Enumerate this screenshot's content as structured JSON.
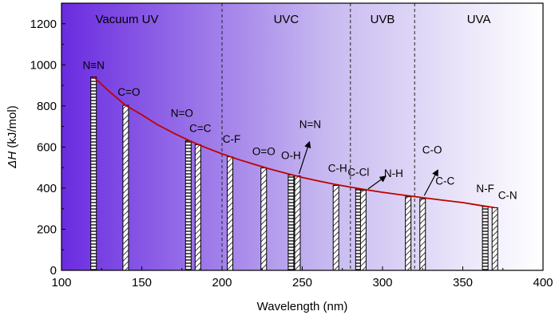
{
  "chart_data": {
    "type": "bar",
    "title": "",
    "xlabel": "Wavelength (nm)",
    "ylabel_symbol": "ΔH",
    "ylabel_unit": "(kJ/mol)",
    "xlim": [
      100,
      400
    ],
    "ylim": [
      0,
      1300
    ],
    "xticks": [
      100,
      150,
      200,
      250,
      300,
      350,
      400
    ],
    "yticks": [
      0,
      200,
      400,
      600,
      800,
      1000,
      1200
    ],
    "regions": [
      {
        "label": "Vacuum UV",
        "range": [
          100,
          200
        ]
      },
      {
        "label": "UVC",
        "range": [
          200,
          280
        ]
      },
      {
        "label": "UVB",
        "range": [
          280,
          320
        ]
      },
      {
        "label": "UVA",
        "range": [
          320,
          400
        ]
      }
    ],
    "region_boundaries": [
      200,
      280,
      320
    ],
    "bonds": [
      {
        "label": "N≡N",
        "wavelength": 120,
        "dH": 941,
        "pattern": "horizontal"
      },
      {
        "label": "C=O",
        "wavelength": 140,
        "dH": 803,
        "pattern": "diagonal"
      },
      {
        "label": "N=O",
        "wavelength": 179,
        "dH": 630,
        "pattern": "horizontal"
      },
      {
        "label": "C=C",
        "wavelength": 185,
        "dH": 611,
        "pattern": "diagonal"
      },
      {
        "label": "C-F",
        "wavelength": 205,
        "dH": 552,
        "pattern": "diagonal"
      },
      {
        "label": "O=O",
        "wavelength": 226,
        "dH": 498,
        "pattern": "diagonal"
      },
      {
        "label": "O-H",
        "wavelength": 243,
        "dH": 463,
        "pattern": "horizontal"
      },
      {
        "label": "N=N",
        "wavelength": 247,
        "dH": 460,
        "pattern": "diagonal"
      },
      {
        "label": "C-H",
        "wavelength": 271,
        "dH": 413,
        "pattern": "diagonal"
      },
      {
        "label": "C-Cl",
        "wavelength": 285,
        "dH": 397,
        "pattern": "horizontal"
      },
      {
        "label": "N-H",
        "wavelength": 288,
        "dH": 389,
        "pattern": "diagonal"
      },
      {
        "label": "C-O",
        "wavelength": 316,
        "dH": 358,
        "pattern": "diagonal"
      },
      {
        "label": "C-C",
        "wavelength": 325,
        "dH": 348,
        "pattern": "diagonal"
      },
      {
        "label": "N-F",
        "wavelength": 364,
        "dH": 310,
        "pattern": "horizontal"
      },
      {
        "label": "C-N",
        "wavelength": 370,
        "dH": 305,
        "pattern": "diagonal"
      }
    ],
    "fit_curve": {
      "color": "#c00000",
      "x": [
        120,
        130,
        140,
        150,
        160,
        170,
        180,
        190,
        200,
        210,
        220,
        230,
        240,
        250,
        260,
        270,
        280,
        290,
        300,
        310,
        320,
        330,
        340,
        350,
        360,
        370
      ],
      "y": [
        941,
        869,
        803,
        757,
        708,
        667,
        630,
        597,
        567,
        540,
        516,
        493,
        472,
        452,
        435,
        419,
        405,
        392,
        380,
        369,
        359,
        349,
        339,
        330,
        317,
        305
      ]
    },
    "gradient": {
      "start": "#6a2be0",
      "end": "#ffffff"
    }
  }
}
